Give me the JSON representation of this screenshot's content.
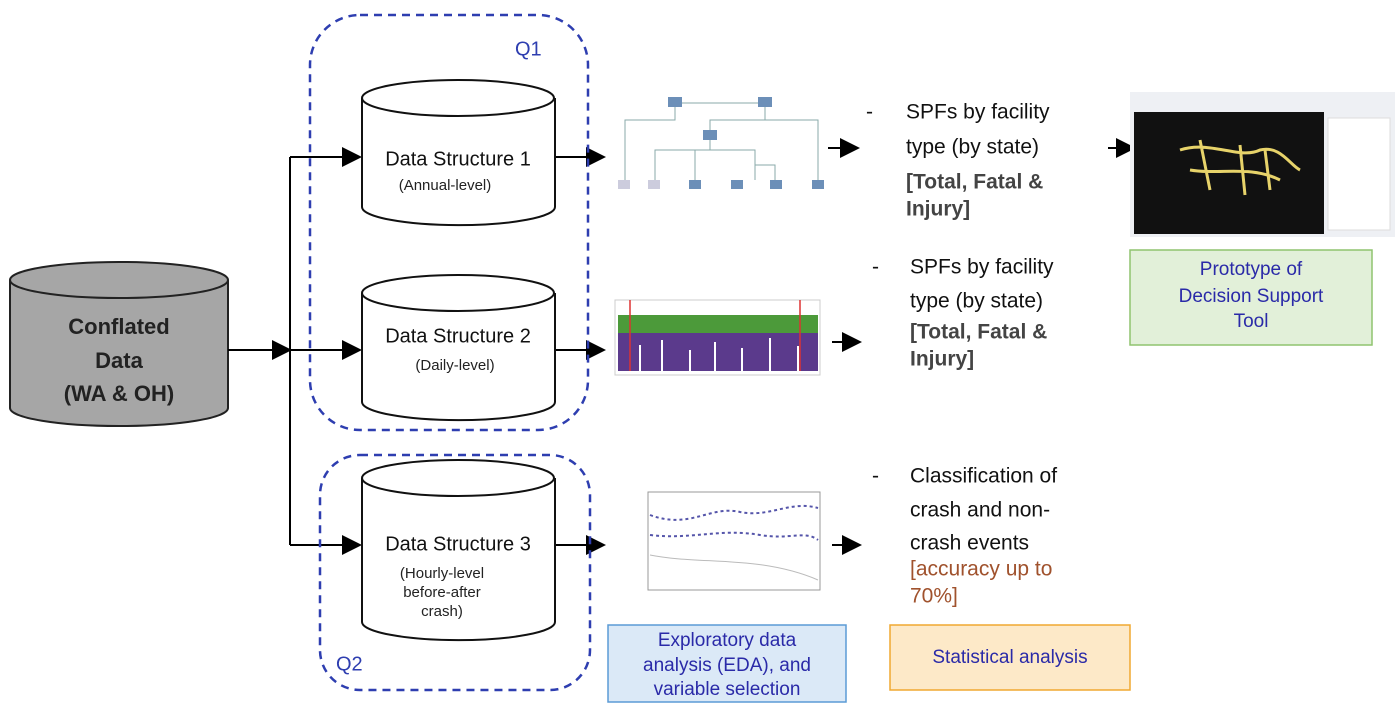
{
  "source": {
    "lines": [
      "Conflated",
      "Data",
      "(WA & OH)"
    ]
  },
  "groups": [
    {
      "label": "Q1"
    },
    {
      "label": "Q2"
    }
  ],
  "structures": [
    {
      "title": "Data Structure 1",
      "detail": [
        "(Annual-level)"
      ]
    },
    {
      "title": "Data Structure 2",
      "detail": [
        "(Daily-level)"
      ]
    },
    {
      "title": "Data Structure 3",
      "detail": [
        "(Hourly-level",
        "before-after",
        "crash)"
      ]
    }
  ],
  "outputs": [
    {
      "bullet": "-",
      "lines": [
        "SPFs by facility",
        "type (by state)"
      ],
      "emphasis": [
        "[Total, Fatal &",
        "Injury]"
      ]
    },
    {
      "bullet": "-",
      "lines": [
        "SPFs by facility",
        "type (by state)"
      ],
      "emphasis": [
        "[Total, Fatal &",
        "Injury]"
      ]
    },
    {
      "bullet": "-",
      "lines": [
        "Classification of",
        "crash and non-",
        "crash events"
      ],
      "emphasis": [
        "[accuracy up to",
        "70%]"
      ]
    }
  ],
  "boxes": {
    "decision_tool": [
      "Prototype of",
      "Decision Support",
      "Tool"
    ],
    "eda": [
      "Exploratory data",
      "analysis (EDA), and",
      "variable selection"
    ],
    "statistical": [
      "Statistical analysis"
    ]
  }
}
